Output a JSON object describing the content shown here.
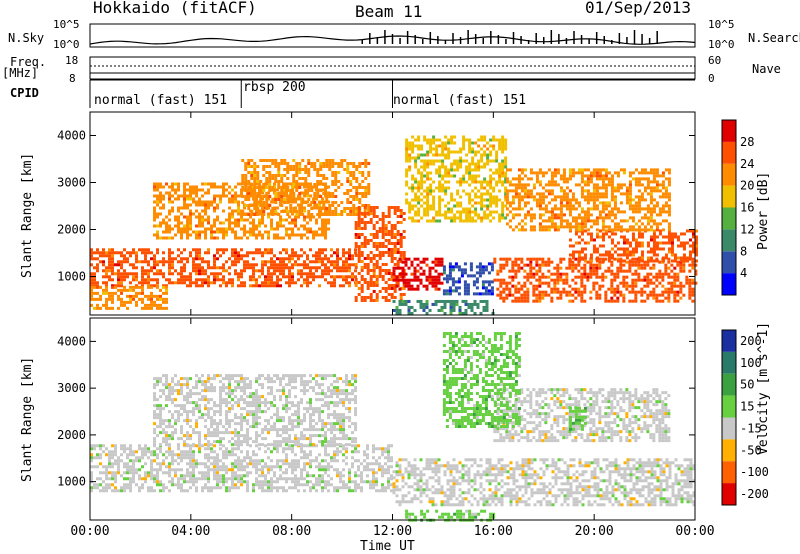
{
  "header": {
    "station": "Hokkaido (fitACF)",
    "beam": "Beam 11",
    "date": "01/Sep/2013"
  },
  "top_panels": {
    "nsky_label": "N.Sky",
    "nsearch_label": "N.Search",
    "freq_label_1": "Freq.",
    "freq_label_2": "[MHz]",
    "nave_label": "Nave",
    "cpid_label": "CPID",
    "n_left_ticks": [
      "10^5",
      "10^0"
    ],
    "n_right_ticks": [
      "10^5",
      "10^0"
    ],
    "freq_ticks": [
      "18",
      "8"
    ],
    "nave_ticks": [
      "60",
      "0"
    ],
    "cpid_modes": [
      {
        "label": "normal (fast) 151",
        "start_hour": 0,
        "end_hour": 6
      },
      {
        "label": "rbsp 200",
        "start_hour": 6,
        "end_hour": 12
      },
      {
        "label": "normal (fast) 151",
        "start_hour": 12,
        "end_hour": 24
      }
    ]
  },
  "chart_data": [
    {
      "type": "heatmap",
      "title": "Power",
      "xlabel": "Time UT",
      "ylabel": "Slant Range [km]",
      "xlim": [
        0,
        24
      ],
      "ylim": [
        180,
        4500
      ],
      "x_ticks": [
        "00:00",
        "04:00",
        "08:00",
        "12:00",
        "16:00",
        "20:00",
        "00:00"
      ],
      "y_ticks": [
        "1000",
        "2000",
        "3000",
        "4000"
      ],
      "colorbar": {
        "label": "Power [dB]",
        "ticks": [
          "4",
          "8",
          "12",
          "16",
          "20",
          "24",
          "28"
        ],
        "colors": [
          "#0000ff",
          "#2f4faa",
          "#3a8a6a",
          "#55b040",
          "#f0c000",
          "#ff8c00",
          "#ff5000",
          "#e00000"
        ]
      },
      "regions": [
        {
          "t0": 0.0,
          "t1": 10.5,
          "r0": 800,
          "r1": 1600,
          "level": 26
        },
        {
          "t0": 0.0,
          "t1": 3.0,
          "r0": 350,
          "r1": 800,
          "level": 22
        },
        {
          "t0": 2.5,
          "t1": 9.5,
          "r0": 1800,
          "r1": 3000,
          "level": 20
        },
        {
          "t0": 6.0,
          "t1": 11.0,
          "r0": 2300,
          "r1": 3500,
          "level": 22
        },
        {
          "t0": 10.5,
          "t1": 12.5,
          "r0": 500,
          "r1": 2500,
          "level": 26
        },
        {
          "t0": 12.0,
          "t1": 14.0,
          "r0": 700,
          "r1": 1400,
          "level": 28
        },
        {
          "t0": 14.0,
          "t1": 16.0,
          "r0": 600,
          "r1": 1300,
          "level": 6
        },
        {
          "t0": 12.5,
          "t1": 16.5,
          "r0": 2200,
          "r1": 4000,
          "level": 18
        },
        {
          "t0": 16.0,
          "t1": 24.0,
          "r0": 450,
          "r1": 1400,
          "level": 26
        },
        {
          "t0": 19.0,
          "t1": 24.0,
          "r0": 1300,
          "r1": 2000,
          "level": 24
        },
        {
          "t0": 16.5,
          "t1": 23.0,
          "r0": 2000,
          "r1": 3300,
          "level": 20
        },
        {
          "t0": 12.0,
          "t1": 16.0,
          "r0": 200,
          "r1": 500,
          "level": 10
        }
      ]
    },
    {
      "type": "heatmap",
      "title": "Velocity",
      "xlabel": "Time UT",
      "ylabel": "Slant Range [km]",
      "xlim": [
        0,
        24
      ],
      "ylim": [
        180,
        4500
      ],
      "x_ticks": [
        "00:00",
        "04:00",
        "08:00",
        "12:00",
        "16:00",
        "20:00",
        "00:00"
      ],
      "y_ticks": [
        "1000",
        "2000",
        "3000",
        "4000"
      ],
      "colorbar": {
        "label": "Velocity [m s^-1]",
        "ticks": [
          "200",
          "100",
          "50",
          "15",
          "-15",
          "-50",
          "-100",
          "-200"
        ],
        "colors": [
          "#1a2fa0",
          "#2a7a6a",
          "#3aa040",
          "#66d040",
          "#c8c8c8",
          "#ffb000",
          "#ff6000",
          "#e00000"
        ]
      },
      "regions": [
        {
          "t0": 0.0,
          "t1": 12.0,
          "r0": 800,
          "r1": 1800,
          "level": 0
        },
        {
          "t0": 2.5,
          "t1": 10.5,
          "r0": 1800,
          "r1": 3300,
          "level": 0
        },
        {
          "t0": 12.0,
          "t1": 24.0,
          "r0": 500,
          "r1": 1500,
          "level": 0
        },
        {
          "t0": 16.0,
          "t1": 23.0,
          "r0": 1900,
          "r1": 3000,
          "level": 0
        },
        {
          "t0": 14.0,
          "t1": 17.0,
          "r0": 2200,
          "r1": 4200,
          "level": 30
        },
        {
          "t0": 19.0,
          "t1": 19.7,
          "r0": 2100,
          "r1": 2600,
          "level": 40
        },
        {
          "t0": 12.5,
          "t1": 16.0,
          "r0": 200,
          "r1": 400,
          "level": 30
        }
      ]
    }
  ]
}
